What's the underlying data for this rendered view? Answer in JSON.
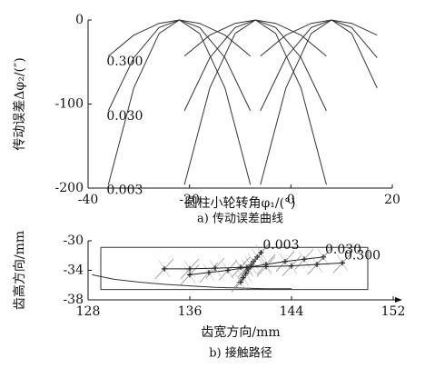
{
  "chart_data": [
    {
      "type": "line",
      "xlabel": "圆柱小轮转角φ₁/(°)",
      "ylabel": "传动误差Δφ₂/(″)",
      "caption": "a) 传动误差曲线",
      "xlim": [
        -40,
        20
      ],
      "ylim": [
        -200,
        0
      ],
      "xticks": [
        -40,
        -20,
        0,
        20
      ],
      "yticks": [
        -200,
        -100,
        0
      ],
      "series": [
        {
          "label": "0.300",
          "color": "#333333",
          "x": [
            -36,
            -31,
            -26,
            -22,
            -18,
            -13,
            -8
          ],
          "values": [
            -43,
            -18,
            -4,
            0,
            -4,
            -18,
            -43
          ]
        },
        {
          "label": "0.030",
          "color": "#333333",
          "x": [
            -36,
            -31,
            -26,
            -22,
            -18,
            -13,
            -8
          ],
          "values": [
            -108,
            -45,
            -9,
            0,
            -9,
            -45,
            -108
          ]
        },
        {
          "label": "0.003",
          "color": "#333333",
          "x": [
            -36,
            -31,
            -26,
            -22,
            -18,
            -13,
            -8
          ],
          "values": [
            -196,
            -81,
            -16,
            0,
            -16,
            -81,
            -196
          ]
        },
        {
          "color": "#333333",
          "x": [
            -21,
            -16,
            -11,
            -7,
            -3,
            2,
            7
          ],
          "values": [
            -43,
            -18,
            -4,
            0,
            -4,
            -18,
            -43
          ]
        },
        {
          "color": "#333333",
          "x": [
            -21,
            -16,
            -11,
            -7,
            -3,
            2,
            7
          ],
          "values": [
            -108,
            -45,
            -9,
            0,
            -9,
            -45,
            -108
          ]
        },
        {
          "color": "#333333",
          "x": [
            -21,
            -16,
            -11,
            -7,
            -3,
            2,
            7
          ],
          "values": [
            -196,
            -81,
            -16,
            0,
            -16,
            -81,
            -196
          ]
        },
        {
          "color": "#333333",
          "x": [
            -6,
            -1,
            4,
            8,
            12,
            17
          ],
          "values": [
            -43,
            -18,
            -4,
            0,
            -4,
            -18
          ]
        },
        {
          "color": "#333333",
          "x": [
            -6,
            -1,
            4,
            8,
            12,
            17
          ],
          "values": [
            -108,
            -45,
            -9,
            0,
            -9,
            -45
          ]
        },
        {
          "color": "#333333",
          "x": [
            -6,
            -1,
            4,
            8,
            12,
            17
          ],
          "values": [
            -196,
            -81,
            -16,
            0,
            -16,
            -81
          ]
        }
      ]
    },
    {
      "type": "line",
      "xlabel": "齿宽方向/mm",
      "ylabel": "齿高方向/mm",
      "caption": "b) 接触路径",
      "xlim": [
        128,
        152
      ],
      "ylim": [
        -38,
        -30
      ],
      "xticks": [
        128,
        136,
        144,
        152
      ],
      "yticks": [
        -38,
        -34,
        -30
      ],
      "series": [
        {
          "color": "#333333",
          "x": [
            129,
            150,
            150,
            129,
            129
          ],
          "values": [
            -30.9,
            -30.9,
            -36.6,
            -36.6,
            -30.9
          ]
        },
        {
          "color": "#333333",
          "x": [
            128.3,
            130,
            132,
            134,
            136,
            138,
            140,
            142,
            144
          ],
          "values": [
            -34.6,
            -35.2,
            -35.6,
            -35.9,
            -36.1,
            -36.3,
            -36.4,
            -36.5,
            -36.5
          ]
        },
        {
          "label": "0.003",
          "color": "#222222",
          "marker": "+",
          "x": [
            140,
            140.2,
            140.4,
            140.6,
            140.8,
            141,
            141.3,
            141.6
          ],
          "values": [
            -35.6,
            -35,
            -34.4,
            -33.8,
            -33.3,
            -32.8,
            -32.2,
            -31.6
          ]
        },
        {
          "label": "0.030",
          "color": "#222222",
          "marker": "+",
          "x": [
            136,
            137.5,
            139,
            140.5,
            142,
            143.5,
            145,
            146.5
          ],
          "values": [
            -34.6,
            -34.3,
            -34,
            -33.6,
            -33.2,
            -32.8,
            -32.5,
            -32.2
          ]
        },
        {
          "label": "0.300",
          "color": "#222222",
          "marker": "+",
          "x": [
            134,
            136,
            138,
            140,
            142,
            144,
            146,
            148
          ],
          "values": [
            -33.8,
            -33.8,
            -33.7,
            -33.6,
            -33.5,
            -33.4,
            -33.2,
            -33
          ]
        }
      ]
    }
  ]
}
